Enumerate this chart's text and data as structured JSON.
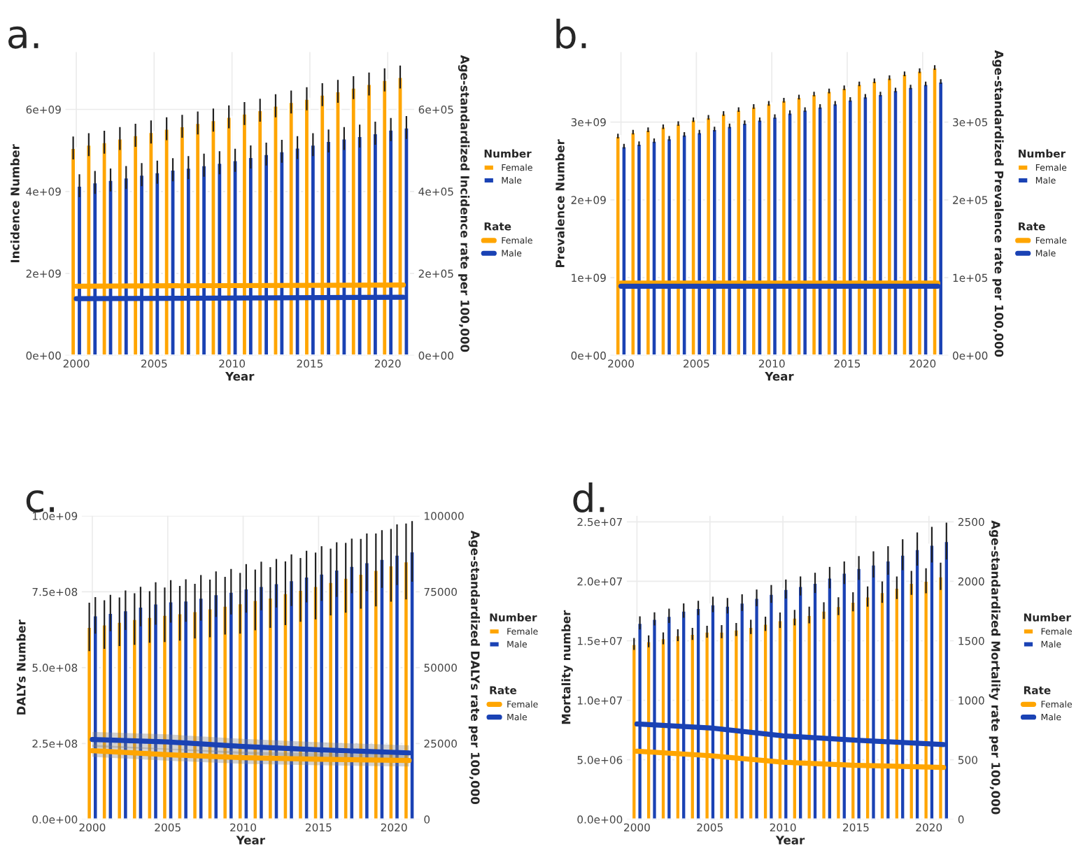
{
  "chart_data": [
    {
      "type": "bar",
      "title": "a.",
      "xlabel": "Year",
      "ylabel": "Incidence Number",
      "y2label": "Age-standardized Incidence rate per 100,000",
      "legend_title": [
        "Number",
        "Rate"
      ],
      "x": [
        2000,
        2001,
        2002,
        2003,
        2004,
        2005,
        2006,
        2007,
        2008,
        2009,
        2010,
        2011,
        2012,
        2013,
        2014,
        2015,
        2016,
        2017,
        2018,
        2019,
        2020,
        2021
      ],
      "xlim": [
        1999.3,
        2021.7
      ],
      "xticks": [
        2000,
        2005,
        2010,
        2015,
        2020
      ],
      "ylim": [
        0,
        7400000000.0
      ],
      "yticks": [
        {
          "value": 0,
          "label": "0e+00"
        },
        {
          "value": 2000000000.0,
          "label": "2e+09"
        },
        {
          "value": 4000000000.0,
          "label": "4e+09"
        },
        {
          "value": 6000000000.0,
          "label": "6e+09"
        }
      ],
      "y2lim": [
        0,
        740000.0
      ],
      "y2ticks": [
        {
          "value": 0,
          "label": "0e+00"
        },
        {
          "value": 200000.0,
          "label": "2e+05"
        },
        {
          "value": 400000.0,
          "label": "4e+05"
        },
        {
          "value": 600000.0,
          "label": "6e+05"
        }
      ],
      "grid": true,
      "legend": "right",
      "series": [
        {
          "name": "Female",
          "color": "#ffa500",
          "values": [
            5060000000.0,
            5140000000.0,
            5200000000.0,
            5290000000.0,
            5370000000.0,
            5450000000.0,
            5530000000.0,
            5590000000.0,
            5670000000.0,
            5740000000.0,
            5820000000.0,
            5900000000.0,
            5980000000.0,
            6090000000.0,
            6180000000.0,
            6260000000.0,
            6360000000.0,
            6440000000.0,
            6530000000.0,
            6620000000.0,
            6720000000.0,
            6790000000.0
          ],
          "errors": [
            280000000.0,
            280000000.0,
            280000000.0,
            280000000.0,
            280000000.0,
            280000000.0,
            280000000.0,
            280000000.0,
            280000000.0,
            280000000.0,
            280000000.0,
            280000000.0,
            280000000.0,
            280000000.0,
            280000000.0,
            280000000.0,
            280000000.0,
            280000000.0,
            280000000.0,
            280000000.0,
            280000000.0,
            280000000.0
          ]
        },
        {
          "name": "Male",
          "color": "#1a42b4",
          "values": [
            4140000000.0,
            4220000000.0,
            4280000000.0,
            4340000000.0,
            4410000000.0,
            4470000000.0,
            4530000000.0,
            4580000000.0,
            4640000000.0,
            4700000000.0,
            4760000000.0,
            4840000000.0,
            4910000000.0,
            4980000000.0,
            5070000000.0,
            5140000000.0,
            5230000000.0,
            5290000000.0,
            5350000000.0,
            5420000000.0,
            5510000000.0,
            5560000000.0
          ],
          "errors": [
            280000000.0,
            280000000.0,
            280000000.0,
            280000000.0,
            280000000.0,
            280000000.0,
            280000000.0,
            280000000.0,
            280000000.0,
            280000000.0,
            280000000.0,
            280000000.0,
            280000000.0,
            280000000.0,
            280000000.0,
            280000000.0,
            280000000.0,
            280000000.0,
            280000000.0,
            280000000.0,
            280000000.0,
            280000000.0
          ]
        },
        {
          "name": "Female",
          "type": "line",
          "axis": "y2",
          "color": "#ffa500",
          "x": [
            2000,
            2021
          ],
          "values": [
            169000.0,
            172000.0
          ]
        },
        {
          "name": "Male",
          "type": "line",
          "axis": "y2",
          "color": "#1a42b4",
          "x": [
            2000,
            2021
          ],
          "values": [
            138500.0,
            142000.0
          ]
        }
      ]
    },
    {
      "type": "bar",
      "title": "b.",
      "xlabel": "Year",
      "ylabel": "Prevalence Number",
      "y2label": "Age-standardized Prevalence rate per 100,000",
      "legend_title": [
        "Number",
        "Rate"
      ],
      "x": [
        2000,
        2001,
        2002,
        2003,
        2004,
        2005,
        2006,
        2007,
        2008,
        2009,
        2010,
        2011,
        2012,
        2013,
        2014,
        2015,
        2016,
        2017,
        2018,
        2019,
        2020,
        2021
      ],
      "xlim": [
        1999.3,
        2021.7
      ],
      "xticks": [
        2000,
        2005,
        2010,
        2015,
        2020
      ],
      "ylim": [
        0,
        3900000000.0
      ],
      "yticks": [
        {
          "value": 0,
          "label": "0e+00"
        },
        {
          "value": 1000000000.0,
          "label": "1e+09"
        },
        {
          "value": 2000000000.0,
          "label": "2e+09"
        },
        {
          "value": 3000000000.0,
          "label": "3e+09"
        }
      ],
      "y2lim": [
        0,
        390000.0
      ],
      "y2ticks": [
        {
          "value": 0,
          "label": "0e+00"
        },
        {
          "value": 100000.0,
          "label": "1e+05"
        },
        {
          "value": 200000.0,
          "label": "2e+05"
        },
        {
          "value": 300000.0,
          "label": "3e+05"
        }
      ],
      "grid": true,
      "legend": "right",
      "series": [
        {
          "name": "Female",
          "color": "#ffa500",
          "values": [
            2820000000.0,
            2870000000.0,
            2900000000.0,
            2940000000.0,
            2980000000.0,
            3030000000.0,
            3060000000.0,
            3110000000.0,
            3160000000.0,
            3200000000.0,
            3240000000.0,
            3280000000.0,
            3320000000.0,
            3360000000.0,
            3400000000.0,
            3440000000.0,
            3490000000.0,
            3530000000.0,
            3570000000.0,
            3620000000.0,
            3660000000.0,
            3700000000.0
          ],
          "errors": [
            30000000.0,
            30000000.0,
            30000000.0,
            30000000.0,
            30000000.0,
            30000000.0,
            30000000.0,
            30000000.0,
            30000000.0,
            30000000.0,
            30000000.0,
            30000000.0,
            30000000.0,
            30000000.0,
            30000000.0,
            30000000.0,
            30000000.0,
            30000000.0,
            30000000.0,
            30000000.0,
            30000000.0,
            30000000.0
          ]
        },
        {
          "name": "Male",
          "color": "#1a42b4",
          "values": [
            2690000000.0,
            2720000000.0,
            2760000000.0,
            2790000000.0,
            2840000000.0,
            2870000000.0,
            2910000000.0,
            2950000000.0,
            2990000000.0,
            3030000000.0,
            3070000000.0,
            3120000000.0,
            3160000000.0,
            3200000000.0,
            3240000000.0,
            3290000000.0,
            3330000000.0,
            3360000000.0,
            3410000000.0,
            3450000000.0,
            3490000000.0,
            3520000000.0
          ],
          "errors": [
            30000000.0,
            30000000.0,
            30000000.0,
            30000000.0,
            30000000.0,
            30000000.0,
            30000000.0,
            30000000.0,
            30000000.0,
            30000000.0,
            30000000.0,
            30000000.0,
            30000000.0,
            30000000.0,
            30000000.0,
            30000000.0,
            30000000.0,
            30000000.0,
            30000000.0,
            30000000.0,
            30000000.0,
            30000000.0
          ]
        },
        {
          "name": "Female",
          "type": "line",
          "axis": "y2",
          "color": "#ffa500",
          "x": [
            2000,
            2021
          ],
          "values": [
            93000.0,
            93000.0
          ]
        },
        {
          "name": "Male",
          "type": "line",
          "axis": "y2",
          "color": "#1a42b4",
          "x": [
            2000,
            2021
          ],
          "values": [
            89000.0,
            89000.0
          ]
        }
      ]
    },
    {
      "type": "bar",
      "title": "c.",
      "xlabel": "Year",
      "ylabel": "DALYs Number",
      "y2label": "Age-standardized DALYs rate per 100,000",
      "legend_title": [
        "Number",
        "Rate"
      ],
      "x": [
        2000,
        2001,
        2002,
        2003,
        2004,
        2005,
        2006,
        2007,
        2008,
        2009,
        2010,
        2011,
        2012,
        2013,
        2014,
        2015,
        2016,
        2017,
        2018,
        2019,
        2020,
        2021
      ],
      "xlim": [
        1999.3,
        2021.7
      ],
      "xticks": [
        2000,
        2005,
        2010,
        2015,
        2020
      ],
      "ylim": [
        0,
        1000000000.0
      ],
      "yticks": [
        {
          "value": 0,
          "label": "0.0e+00"
        },
        {
          "value": 250000000.0,
          "label": "2.5e+08"
        },
        {
          "value": 500000000.0,
          "label": "5.0e+08"
        },
        {
          "value": 750000000.0,
          "label": "7.5e+08"
        },
        {
          "value": 1000000000.0,
          "label": "1.0e+09"
        }
      ],
      "y2lim": [
        0,
        100000
      ],
      "y2ticks": [
        0,
        25000,
        50000,
        75000,
        100000
      ],
      "grid": true,
      "legend": "right",
      "series": [
        {
          "name": "Female",
          "color": "#ffa500",
          "values": [
            634000000.0,
            642000000.0,
            651000000.0,
            660000000.0,
            667000000.0,
            674000000.0,
            679000000.0,
            686000000.0,
            695000000.0,
            704000000.0,
            712000000.0,
            723000000.0,
            731000000.0,
            745000000.0,
            756000000.0,
            769000000.0,
            782000000.0,
            796000000.0,
            809000000.0,
            822000000.0,
            837000000.0,
            850000000.0
          ],
          "errors": [
            80000000.0,
            80000000.0,
            80000000.0,
            85000000.0,
            85000000.0,
            90000000.0,
            90000000.0,
            90000000.0,
            95000000.0,
            95000000.0,
            100000000.0,
            100000000.0,
            100000000.0,
            105000000.0,
            105000000.0,
            110000000.0,
            110000000.0,
            115000000.0,
            115000000.0,
            120000000.0,
            120000000.0,
            125000000.0
          ]
        },
        {
          "name": "Male",
          "color": "#1a42b4",
          "values": [
            672000000.0,
            680000000.0,
            689000000.0,
            701000000.0,
            711000000.0,
            718000000.0,
            721000000.0,
            730000000.0,
            742000000.0,
            750000000.0,
            761000000.0,
            769000000.0,
            778000000.0,
            788000000.0,
            800000000.0,
            810000000.0,
            823000000.0,
            835000000.0,
            847000000.0,
            858000000.0,
            872000000.0,
            883000000.0
          ],
          "errors": [
            60000000.0,
            60000000.0,
            65000000.0,
            65000000.0,
            70000000.0,
            70000000.0,
            70000000.0,
            75000000.0,
            75000000.0,
            75000000.0,
            80000000.0,
            80000000.0,
            80000000.0,
            85000000.0,
            85000000.0,
            90000000.0,
            90000000.0,
            90000000.0,
            95000000.0,
            95000000.0,
            100000000.0,
            100000000.0
          ]
        },
        {
          "name": "Female",
          "type": "line",
          "axis": "y2",
          "color": "#ffa500",
          "x": [
            2000,
            2005,
            2010,
            2015,
            2021
          ],
          "values": [
            22600,
            21300,
            20300,
            19800,
            19400
          ],
          "lower": [
            20600,
            19300,
            18300,
            17800,
            17400
          ],
          "upper": [
            24600,
            23300,
            22300,
            21800,
            21400
          ]
        },
        {
          "name": "Male",
          "type": "line",
          "axis": "y2",
          "color": "#1a42b4",
          "x": [
            2000,
            2005,
            2010,
            2015,
            2021
          ],
          "values": [
            26300,
            25500,
            24000,
            22900,
            21900
          ],
          "lower": [
            23800,
            23000,
            21500,
            20400,
            19400
          ],
          "upper": [
            28800,
            28000,
            26500,
            25400,
            24400
          ]
        }
      ]
    },
    {
      "type": "bar",
      "title": "d.",
      "xlabel": "Year",
      "ylabel": "Mortality number",
      "y2label": "Age-standardized Mortality rate per 100,000",
      "legend_title": [
        "Number",
        "Rate"
      ],
      "x": [
        2000,
        2001,
        2002,
        2003,
        2004,
        2005,
        2006,
        2007,
        2008,
        2009,
        2010,
        2011,
        2012,
        2013,
        2014,
        2015,
        2016,
        2017,
        2018,
        2019,
        2020,
        2021
      ],
      "xlim": [
        1999.3,
        2021.7
      ],
      "xticks": [
        2000,
        2005,
        2010,
        2015,
        2020
      ],
      "ylim": [
        0,
        25500000.0
      ],
      "yticks": [
        {
          "value": 0,
          "label": "0.0e+00"
        },
        {
          "value": 5000000.0,
          "label": "5.0e+06"
        },
        {
          "value": 10000000.0,
          "label": "1.0e+07"
        },
        {
          "value": 15000000.0,
          "label": "1.5e+07"
        },
        {
          "value": 20000000.0,
          "label": "2.0e+07"
        },
        {
          "value": 25000000.0,
          "label": "2.5e+07"
        }
      ],
      "y2lim": [
        0,
        2550
      ],
      "y2ticks": [
        0,
        500,
        1000,
        1500,
        2000,
        2500
      ],
      "grid": true,
      "legend": "right",
      "series": [
        {
          "name": "Female",
          "color": "#ffa500",
          "values": [
            14730000.0,
            14960000.0,
            15210000.0,
            15470000.0,
            15580000.0,
            15770000.0,
            15770000.0,
            15950000.0,
            16170000.0,
            16430000.0,
            16730000.0,
            16950000.0,
            17170000.0,
            17540000.0,
            17910000.0,
            18280000.0,
            18720000.0,
            19090000.0,
            19460000.0,
            19870000.0,
            20050000.0,
            20420000.0
          ],
          "errors": [
            500000.0,
            500000.0,
            500000.0,
            500000.0,
            500000.0,
            500000.0,
            550000.0,
            550000.0,
            600000.0,
            600000.0,
            650000.0,
            650000.0,
            700000.0,
            700000.0,
            750000.0,
            800000.0,
            850000.0,
            900000.0,
            950000.0,
            1000000.0,
            1050000.0,
            1150000.0
          ]
        },
        {
          "name": "Male",
          "color": "#1a42b4",
          "values": [
            16510000.0,
            16840000.0,
            17100000.0,
            17540000.0,
            17760000.0,
            18060000.0,
            17950000.0,
            18210000.0,
            18610000.0,
            18940000.0,
            19350000.0,
            19610000.0,
            19870000.0,
            20310000.0,
            20720000.0,
            21120000.0,
            21420000.0,
            21750000.0,
            22230000.0,
            22710000.0,
            23080000.0,
            23380000.0
          ],
          "errors": [
            550000.0,
            550000.0,
            600000.0,
            600000.0,
            600000.0,
            650000.0,
            650000.0,
            700000.0,
            700000.0,
            750000.0,
            800000.0,
            800000.0,
            850000.0,
            900000.0,
            950000.0,
            1000000.0,
            1100000.0,
            1200000.0,
            1300000.0,
            1400000.0,
            1500000.0,
            1550000.0
          ]
        },
        {
          "name": "Female",
          "type": "line",
          "axis": "y2",
          "color": "#ffa500",
          "x": [
            2000,
            2005,
            2010,
            2015,
            2021
          ],
          "values": [
            572,
            535,
            480,
            454,
            436
          ]
        },
        {
          "name": "Male",
          "type": "line",
          "axis": "y2",
          "color": "#1a42b4",
          "x": [
            2000,
            2005,
            2010,
            2015,
            2021
          ],
          "values": [
            801,
            768,
            702,
            665,
            628
          ]
        }
      ]
    }
  ]
}
